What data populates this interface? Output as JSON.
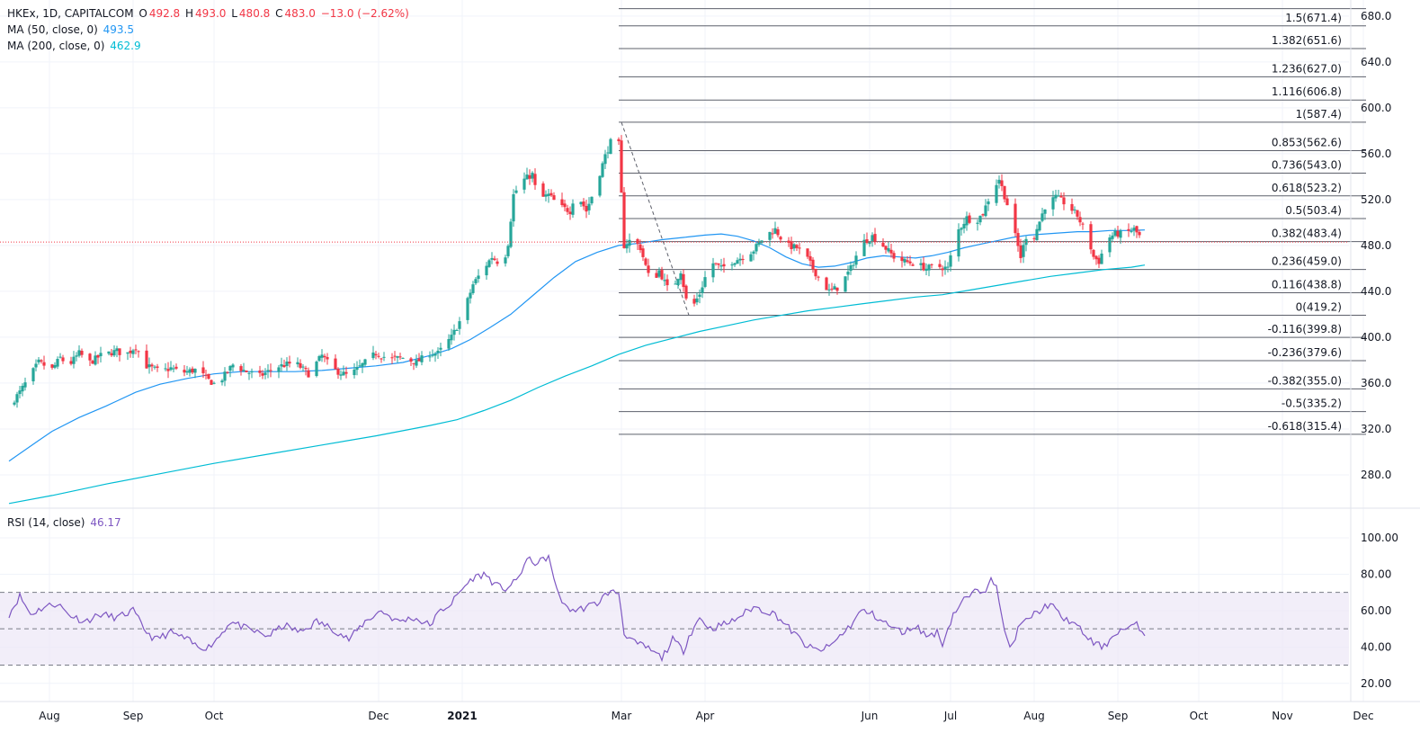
{
  "header": {
    "symbol": "HKEx, 1D, CAPITALCOM",
    "o_label": "O",
    "o_value": "492.8",
    "h_label": "H",
    "h_value": "493.0",
    "l_label": "L",
    "l_value": "480.8",
    "c_label": "C",
    "c_value": "483.0",
    "change": "−13.0 (−2.62%)"
  },
  "indicators": {
    "ma50_label": "MA (50, close, 0)",
    "ma50_value": "493.5",
    "ma200_label": "MA (200, close, 0)",
    "ma200_value": "462.9",
    "rsi_label": "RSI (14, close)",
    "rsi_value": "46.17"
  },
  "colors": {
    "up": "#26a69a",
    "down": "#f23645",
    "ma50": "#2196f3",
    "ma200": "#00bcd4",
    "rsi": "#7e57c2",
    "rsi_band": "#ede7f6",
    "fib_line": "#5d606b",
    "grid": "#f0f3fa",
    "text": "#131722",
    "price_line": "#f23645"
  },
  "chart_data": [
    {
      "type": "candlestick",
      "title": "HKEx, 1D, CAPITALCOM",
      "ylim": [
        250,
        690
      ],
      "y_ticks": [
        "280.0",
        "320.0",
        "360.0",
        "400.0",
        "440.0",
        "480.0",
        "520.0",
        "560.0",
        "600.0",
        "640.0",
        "680.0"
      ],
      "x_ticks": [
        {
          "label": "Aug",
          "d": 0
        },
        {
          "label": "Sep",
          "d": 31
        },
        {
          "label": "Oct",
          "d": 61
        },
        {
          "label": "Dec",
          "d": 122
        },
        {
          "label": "2021",
          "d": 153,
          "bold": true
        },
        {
          "label": "Mar",
          "d": 212
        },
        {
          "label": "Apr",
          "d": 243
        },
        {
          "label": "Jun",
          "d": 304
        },
        {
          "label": "Jul",
          "d": 334
        },
        {
          "label": "Aug",
          "d": 365
        },
        {
          "label": "Sep",
          "d": 396
        },
        {
          "label": "Oct",
          "d": 426
        },
        {
          "label": "Nov",
          "d": 457
        },
        {
          "label": "Dec",
          "d": 487
        }
      ],
      "last_price": 483.0,
      "anchors": [
        [
          -16,
          340
        ],
        [
          -12,
          352
        ],
        [
          -5,
          378
        ],
        [
          0,
          372
        ],
        [
          3,
          382
        ],
        [
          6,
          375
        ],
        [
          10,
          386
        ],
        [
          14,
          378
        ],
        [
          18,
          384
        ],
        [
          24,
          388
        ],
        [
          27,
          384
        ],
        [
          31,
          392
        ],
        [
          35,
          375
        ],
        [
          40,
          370
        ],
        [
          44,
          373
        ],
        [
          48,
          369
        ],
        [
          54,
          372
        ],
        [
          57,
          364
        ],
        [
          61,
          358
        ],
        [
          67,
          376
        ],
        [
          72,
          370
        ],
        [
          77,
          366
        ],
        [
          83,
          374
        ],
        [
          90,
          378
        ],
        [
          95,
          368
        ],
        [
          100,
          384
        ],
        [
          104,
          372
        ],
        [
          110,
          366
        ],
        [
          115,
          376
        ],
        [
          120,
          386
        ],
        [
          125,
          381
        ],
        [
          130,
          382
        ],
        [
          135,
          378
        ],
        [
          140,
          386
        ],
        [
          143,
          386
        ],
        [
          148,
          400
        ],
        [
          152,
          418
        ],
        [
          156,
          446
        ],
        [
          160,
          460
        ],
        [
          163,
          470
        ],
        [
          167,
          462
        ],
        [
          169,
          482
        ],
        [
          171,
          524
        ],
        [
          174,
          536
        ],
        [
          178,
          542
        ],
        [
          180,
          520
        ],
        [
          184,
          524
        ],
        [
          188,
          514
        ],
        [
          192,
          510
        ],
        [
          194,
          528
        ],
        [
          198,
          510
        ],
        [
          202,
          536
        ],
        [
          205,
          558
        ],
        [
          208,
          576
        ],
        [
          210,
          568
        ],
        [
          212,
          480
        ],
        [
          215,
          486
        ],
        [
          218,
          478
        ],
        [
          222,
          446
        ],
        [
          225,
          458
        ],
        [
          229,
          438
        ],
        [
          233,
          458
        ],
        [
          236,
          420
        ],
        [
          240,
          438
        ],
        [
          244,
          466
        ],
        [
          248,
          460
        ],
        [
          252,
          466
        ],
        [
          256,
          470
        ],
        [
          260,
          476
        ],
        [
          264,
          488
        ],
        [
          268,
          494
        ],
        [
          272,
          480
        ],
        [
          276,
          478
        ],
        [
          280,
          468
        ],
        [
          284,
          452
        ],
        [
          288,
          440
        ],
        [
          292,
          444
        ],
        [
          296,
          460
        ],
        [
          300,
          482
        ],
        [
          304,
          488
        ],
        [
          308,
          480
        ],
        [
          312,
          470
        ],
        [
          316,
          466
        ],
        [
          320,
          464
        ],
        [
          324,
          460
        ],
        [
          328,
          462
        ],
        [
          332,
          460
        ],
        [
          335,
          490
        ],
        [
          339,
          504
        ],
        [
          342,
          500
        ],
        [
          345,
          508
        ],
        [
          348,
          526
        ],
        [
          351,
          538
        ],
        [
          354,
          516
        ],
        [
          357,
          488
        ],
        [
          359,
          470
        ],
        [
          361,
          488
        ],
        [
          364,
          488
        ],
        [
          368,
          514
        ],
        [
          372,
          522
        ],
        [
          376,
          516
        ],
        [
          380,
          506
        ],
        [
          384,
          486
        ],
        [
          386,
          470
        ],
        [
          388,
          466
        ],
        [
          391,
          486
        ],
        [
          394,
          490
        ],
        [
          397,
          490
        ],
        [
          401,
          494
        ],
        [
          403,
          488
        ],
        [
          405,
          483
        ]
      ],
      "ma50": [
        [
          -16,
          292
        ],
        [
          -5,
          310
        ],
        [
          0,
          318
        ],
        [
          10,
          330
        ],
        [
          20,
          340
        ],
        [
          31,
          352
        ],
        [
          40,
          359
        ],
        [
          50,
          364
        ],
        [
          60,
          368
        ],
        [
          70,
          370
        ],
        [
          80,
          370
        ],
        [
          90,
          370
        ],
        [
          100,
          371
        ],
        [
          110,
          373
        ],
        [
          120,
          375
        ],
        [
          130,
          378
        ],
        [
          140,
          384
        ],
        [
          148,
          390
        ],
        [
          155,
          398
        ],
        [
          162,
          408
        ],
        [
          170,
          420
        ],
        [
          178,
          436
        ],
        [
          186,
          452
        ],
        [
          194,
          466
        ],
        [
          202,
          474
        ],
        [
          210,
          480
        ],
        [
          218,
          482
        ],
        [
          226,
          485
        ],
        [
          234,
          487
        ],
        [
          242,
          489
        ],
        [
          248,
          490
        ],
        [
          254,
          488
        ],
        [
          260,
          484
        ],
        [
          266,
          478
        ],
        [
          272,
          470
        ],
        [
          278,
          464
        ],
        [
          284,
          461
        ],
        [
          290,
          462
        ],
        [
          296,
          465
        ],
        [
          302,
          469
        ],
        [
          308,
          471
        ],
        [
          314,
          470
        ],
        [
          320,
          469
        ],
        [
          326,
          471
        ],
        [
          332,
          474
        ],
        [
          338,
          478
        ],
        [
          344,
          481
        ],
        [
          350,
          484
        ],
        [
          356,
          487
        ],
        [
          362,
          489
        ],
        [
          368,
          490
        ],
        [
          374,
          491
        ],
        [
          380,
          492
        ],
        [
          386,
          492
        ],
        [
          392,
          493
        ],
        [
          398,
          493
        ],
        [
          405,
          493.5
        ]
      ],
      "ma200": [
        [
          -16,
          255
        ],
        [
          0,
          262
        ],
        [
          20,
          272
        ],
        [
          40,
          281
        ],
        [
          60,
          290
        ],
        [
          80,
          298
        ],
        [
          100,
          306
        ],
        [
          120,
          314
        ],
        [
          140,
          323
        ],
        [
          150,
          328
        ],
        [
          160,
          336
        ],
        [
          170,
          345
        ],
        [
          180,
          356
        ],
        [
          190,
          366
        ],
        [
          200,
          375
        ],
        [
          210,
          385
        ],
        [
          220,
          393
        ],
        [
          230,
          399
        ],
        [
          240,
          405
        ],
        [
          250,
          410
        ],
        [
          260,
          415
        ],
        [
          270,
          419
        ],
        [
          280,
          423
        ],
        [
          290,
          426
        ],
        [
          300,
          429
        ],
        [
          310,
          432
        ],
        [
          320,
          435
        ],
        [
          330,
          437
        ],
        [
          340,
          441
        ],
        [
          350,
          445
        ],
        [
          360,
          449
        ],
        [
          370,
          453
        ],
        [
          380,
          456
        ],
        [
          390,
          459
        ],
        [
          400,
          461
        ],
        [
          405,
          462.9
        ]
      ],
      "fibonacci": {
        "levels": [
          {
            "label": "1.5(671.4)",
            "value": 671.4
          },
          {
            "label": "1.382(651.6)",
            "value": 651.6
          },
          {
            "label": "1.236(627.0)",
            "value": 627.0
          },
          {
            "label": "1.116(606.8)",
            "value": 606.8
          },
          {
            "label": "1(587.4)",
            "value": 587.4
          },
          {
            "label": "0.853(562.6)",
            "value": 562.6
          },
          {
            "label": "0.736(543.0)",
            "value": 543.0
          },
          {
            "label": "0.618(523.2)",
            "value": 523.2
          },
          {
            "label": "0.5(503.4)",
            "value": 503.4
          },
          {
            "label": "0.382(483.4)",
            "value": 483.4
          },
          {
            "label": "0.236(459.0)",
            "value": 459.0
          },
          {
            "label": "0.116(438.8)",
            "value": 438.8
          },
          {
            "label": "0(419.2)",
            "value": 419.2
          },
          {
            "label": "-0.116(399.8)",
            "value": 399.8
          },
          {
            "label": "-0.236(379.6)",
            "value": 379.6
          },
          {
            "label": "-0.382(355.0)",
            "value": 355.0
          },
          {
            "label": "-0.5(335.2)",
            "value": 335.2
          },
          {
            "label": "-0.618(315.4)",
            "value": 315.4
          }
        ],
        "top_line_value": 686.4,
        "start_d": 210,
        "end_d": 487,
        "trend_from": {
          "d": 211,
          "price": 587.4
        },
        "trend_to": {
          "d": 236,
          "price": 419.2
        }
      }
    },
    {
      "type": "line",
      "title": "RSI (14, close)",
      "ylim": [
        10,
        115
      ],
      "y_ticks": [
        "20.00",
        "40.00",
        "60.00",
        "80.00",
        "100.00"
      ],
      "band": [
        30,
        70
      ],
      "midline": 50,
      "last_value": 46.17,
      "anchors": [
        [
          -16,
          58
        ],
        [
          -12,
          68
        ],
        [
          -8,
          58
        ],
        [
          -3,
          62
        ],
        [
          2,
          64
        ],
        [
          6,
          58
        ],
        [
          12,
          54
        ],
        [
          18,
          58
        ],
        [
          24,
          56
        ],
        [
          30,
          60
        ],
        [
          34,
          50
        ],
        [
          38,
          44
        ],
        [
          44,
          48
        ],
        [
          50,
          44
        ],
        [
          54,
          40
        ],
        [
          58,
          40
        ],
        [
          62,
          46
        ],
        [
          66,
          54
        ],
        [
          72,
          50
        ],
        [
          80,
          46
        ],
        [
          86,
          52
        ],
        [
          92,
          48
        ],
        [
          98,
          54
        ],
        [
          104,
          50
        ],
        [
          110,
          44
        ],
        [
          116,
          54
        ],
        [
          122,
          60
        ],
        [
          128,
          54
        ],
        [
          134,
          56
        ],
        [
          140,
          52
        ],
        [
          144,
          60
        ],
        [
          148,
          64
        ],
        [
          152,
          72
        ],
        [
          156,
          78
        ],
        [
          160,
          80
        ],
        [
          162,
          78
        ],
        [
          164,
          74
        ],
        [
          168,
          72
        ],
        [
          172,
          76
        ],
        [
          176,
          88
        ],
        [
          180,
          86
        ],
        [
          184,
          90
        ],
        [
          186,
          76
        ],
        [
          190,
          62
        ],
        [
          194,
          60
        ],
        [
          198,
          62
        ],
        [
          202,
          64
        ],
        [
          206,
          70
        ],
        [
          210,
          70
        ],
        [
          212,
          48
        ],
        [
          216,
          42
        ],
        [
          220,
          40
        ],
        [
          224,
          36
        ],
        [
          226,
          34
        ],
        [
          230,
          44
        ],
        [
          234,
          38
        ],
        [
          236,
          46
        ],
        [
          240,
          56
        ],
        [
          244,
          50
        ],
        [
          248,
          52
        ],
        [
          252,
          54
        ],
        [
          256,
          58
        ],
        [
          260,
          62
        ],
        [
          264,
          60
        ],
        [
          268,
          58
        ],
        [
          272,
          52
        ],
        [
          276,
          46
        ],
        [
          280,
          40
        ],
        [
          284,
          38
        ],
        [
          288,
          40
        ],
        [
          292,
          46
        ],
        [
          296,
          52
        ],
        [
          300,
          60
        ],
        [
          304,
          58
        ],
        [
          308,
          54
        ],
        [
          312,
          50
        ],
        [
          316,
          48
        ],
        [
          320,
          52
        ],
        [
          324,
          46
        ],
        [
          328,
          48
        ],
        [
          330,
          42
        ],
        [
          334,
          58
        ],
        [
          338,
          66
        ],
        [
          342,
          70
        ],
        [
          346,
          72
        ],
        [
          348,
          80
        ],
        [
          350,
          72
        ],
        [
          352,
          56
        ],
        [
          354,
          44
        ],
        [
          356,
          40
        ],
        [
          358,
          50
        ],
        [
          362,
          56
        ],
        [
          366,
          60
        ],
        [
          370,
          64
        ],
        [
          374,
          56
        ],
        [
          378,
          54
        ],
        [
          382,
          48
        ],
        [
          386,
          42
        ],
        [
          390,
          40
        ],
        [
          394,
          48
        ],
        [
          398,
          50
        ],
        [
          402,
          52
        ],
        [
          405,
          46.17
        ]
      ]
    }
  ]
}
